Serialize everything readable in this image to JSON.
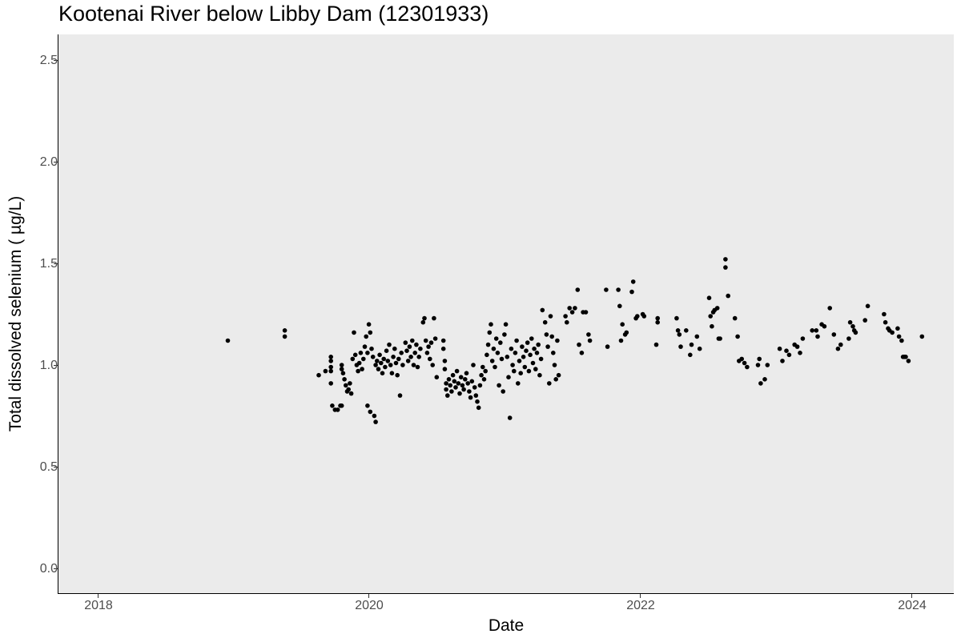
{
  "chart_data": {
    "type": "scatter",
    "title": "Kootenai River below Libby Dam (12301933)",
    "xlabel": "Date",
    "ylabel": "Total dissolved selenium ( µg/L)",
    "x_ticks": [
      "2018",
      "2020",
      "2022",
      "2024"
    ],
    "y_ticks": [
      "0.0",
      "0.5",
      "1.0",
      "1.5",
      "2.0",
      "2.5"
    ],
    "xlim": [
      2017.7,
      2024.3
    ],
    "ylim": [
      -0.12,
      2.62
    ],
    "grid": false,
    "panel_background": "#ebebeb",
    "point_color": "#000000",
    "series": [
      {
        "name": "Total dissolved selenium",
        "points": [
          [
            2018.96,
            1.12
          ],
          [
            2019.38,
            1.17
          ],
          [
            2019.38,
            1.14
          ],
          [
            2019.63,
            0.95
          ],
          [
            2019.68,
            0.97
          ],
          [
            2019.72,
            1.04
          ],
          [
            2019.72,
            1.02
          ],
          [
            2019.72,
            0.99
          ],
          [
            2019.72,
            0.97
          ],
          [
            2019.72,
            0.91
          ],
          [
            2019.73,
            0.8
          ],
          [
            2019.75,
            0.78
          ],
          [
            2019.77,
            0.78
          ],
          [
            2019.79,
            0.8
          ],
          [
            2019.8,
            0.8
          ],
          [
            2019.8,
            1.0
          ],
          [
            2019.8,
            0.98
          ],
          [
            2019.81,
            0.96
          ],
          [
            2019.82,
            0.93
          ],
          [
            2019.83,
            0.9
          ],
          [
            2019.84,
            0.87
          ],
          [
            2019.85,
            0.88
          ],
          [
            2019.86,
            0.91
          ],
          [
            2019.87,
            0.86
          ],
          [
            2019.88,
            1.03
          ],
          [
            2019.89,
            1.16
          ],
          [
            2019.9,
            1.05
          ],
          [
            2019.91,
            1.0
          ],
          [
            2019.92,
            0.97
          ],
          [
            2019.93,
            1.01
          ],
          [
            2019.94,
            1.06
          ],
          [
            2019.95,
            0.98
          ],
          [
            2019.96,
            1.03
          ],
          [
            2019.97,
            1.09
          ],
          [
            2019.98,
            1.14
          ],
          [
            2019.99,
            1.06
          ],
          [
            2019.99,
            0.8
          ],
          [
            2020.0,
            1.2
          ],
          [
            2020.01,
            1.16
          ],
          [
            2020.01,
            0.77
          ],
          [
            2020.02,
            1.08
          ],
          [
            2020.03,
            1.04
          ],
          [
            2020.04,
            0.75
          ],
          [
            2020.05,
            1.0
          ],
          [
            2020.05,
            0.72
          ],
          [
            2020.06,
            1.02
          ],
          [
            2020.07,
            0.98
          ],
          [
            2020.08,
            1.05
          ],
          [
            2020.09,
            1.01
          ],
          [
            2020.1,
            0.96
          ],
          [
            2020.11,
            1.03
          ],
          [
            2020.12,
            0.99
          ],
          [
            2020.13,
            1.07
          ],
          [
            2020.14,
            1.02
          ],
          [
            2020.15,
            1.1
          ],
          [
            2020.16,
            1.0
          ],
          [
            2020.17,
            0.96
          ],
          [
            2020.18,
            1.04
          ],
          [
            2020.19,
            1.08
          ],
          [
            2020.2,
            1.01
          ],
          [
            2020.21,
            0.95
          ],
          [
            2020.22,
            1.03
          ],
          [
            2020.23,
            0.85
          ],
          [
            2020.24,
            1.06
          ],
          [
            2020.25,
            1.0
          ],
          [
            2020.27,
            1.11
          ],
          [
            2020.28,
            1.07
          ],
          [
            2020.29,
            1.02
          ],
          [
            2020.3,
            1.09
          ],
          [
            2020.31,
            1.04
          ],
          [
            2020.32,
            1.12
          ],
          [
            2020.33,
            1.0
          ],
          [
            2020.34,
            1.06
          ],
          [
            2020.35,
            1.1
          ],
          [
            2020.36,
            0.99
          ],
          [
            2020.37,
            1.04
          ],
          [
            2020.38,
            1.08
          ],
          [
            2020.4,
            1.21
          ],
          [
            2020.41,
            1.23
          ],
          [
            2020.42,
            1.12
          ],
          [
            2020.43,
            1.06
          ],
          [
            2020.44,
            1.09
          ],
          [
            2020.45,
            1.03
          ],
          [
            2020.46,
            1.11
          ],
          [
            2020.47,
            1.0
          ],
          [
            2020.48,
            1.23
          ],
          [
            2020.49,
            1.13
          ],
          [
            2020.5,
            0.94
          ],
          [
            2020.55,
            1.12
          ],
          [
            2020.55,
            1.08
          ],
          [
            2020.56,
            1.02
          ],
          [
            2020.56,
            0.98
          ],
          [
            2020.57,
            0.91
          ],
          [
            2020.57,
            0.88
          ],
          [
            2020.58,
            0.85
          ],
          [
            2020.59,
            0.93
          ],
          [
            2020.6,
            0.9
          ],
          [
            2020.61,
            0.87
          ],
          [
            2020.62,
            0.95
          ],
          [
            2020.63,
            0.92
          ],
          [
            2020.64,
            0.89
          ],
          [
            2020.65,
            0.97
          ],
          [
            2020.66,
            0.91
          ],
          [
            2020.67,
            0.86
          ],
          [
            2020.68,
            0.94
          ],
          [
            2020.69,
            0.9
          ],
          [
            2020.7,
            0.88
          ],
          [
            2020.71,
            0.93
          ],
          [
            2020.72,
            0.96
          ],
          [
            2020.73,
            0.91
          ],
          [
            2020.74,
            0.87
          ],
          [
            2020.75,
            0.84
          ],
          [
            2020.76,
            0.92
          ],
          [
            2020.77,
            1.0
          ],
          [
            2020.78,
            0.89
          ],
          [
            2020.79,
            0.85
          ],
          [
            2020.8,
            0.82
          ],
          [
            2020.81,
            0.79
          ],
          [
            2020.82,
            0.9
          ],
          [
            2020.83,
            0.95
          ],
          [
            2020.84,
            0.99
          ],
          [
            2020.85,
            0.93
          ],
          [
            2020.86,
            0.97
          ],
          [
            2020.87,
            1.05
          ],
          [
            2020.88,
            1.1
          ],
          [
            2020.89,
            1.16
          ],
          [
            2020.9,
            1.2
          ],
          [
            2020.91,
            1.02
          ],
          [
            2020.92,
            1.08
          ],
          [
            2020.93,
            0.99
          ],
          [
            2020.94,
            1.13
          ],
          [
            2020.95,
            1.06
          ],
          [
            2020.96,
            0.9
          ],
          [
            2020.97,
            1.11
          ],
          [
            2020.98,
            1.03
          ],
          [
            2020.99,
            0.87
          ],
          [
            2021.0,
            1.15
          ],
          [
            2021.01,
            1.2
          ],
          [
            2021.02,
            1.04
          ],
          [
            2021.03,
            0.94
          ],
          [
            2021.04,
            0.74
          ],
          [
            2021.05,
            1.08
          ],
          [
            2021.06,
            1.0
          ],
          [
            2021.07,
            0.97
          ],
          [
            2021.08,
            1.06
          ],
          [
            2021.09,
            1.12
          ],
          [
            2021.1,
            0.91
          ],
          [
            2021.11,
            1.02
          ],
          [
            2021.12,
            0.96
          ],
          [
            2021.13,
            1.09
          ],
          [
            2021.14,
            1.04
          ],
          [
            2021.15,
            0.99
          ],
          [
            2021.16,
            1.07
          ],
          [
            2021.17,
            1.11
          ],
          [
            2021.18,
            0.97
          ],
          [
            2021.19,
            1.05
          ],
          [
            2021.2,
            1.13
          ],
          [
            2021.21,
            1.01
          ],
          [
            2021.22,
            1.08
          ],
          [
            2021.23,
            0.98
          ],
          [
            2021.24,
            1.06
          ],
          [
            2021.25,
            1.1
          ],
          [
            2021.26,
            0.95
          ],
          [
            2021.27,
            1.03
          ],
          [
            2021.28,
            1.27
          ],
          [
            2021.3,
            1.21
          ],
          [
            2021.31,
            1.15
          ],
          [
            2021.32,
            1.09
          ],
          [
            2021.33,
            0.91
          ],
          [
            2021.34,
            1.24
          ],
          [
            2021.35,
            1.14
          ],
          [
            2021.36,
            1.06
          ],
          [
            2021.37,
            1.0
          ],
          [
            2021.38,
            0.93
          ],
          [
            2021.39,
            1.12
          ],
          [
            2021.4,
            0.95
          ],
          [
            2021.45,
            1.24
          ],
          [
            2021.46,
            1.21
          ],
          [
            2021.48,
            1.28
          ],
          [
            2021.5,
            1.26
          ],
          [
            2021.52,
            1.28
          ],
          [
            2021.54,
            1.37
          ],
          [
            2021.55,
            1.1
          ],
          [
            2021.57,
            1.06
          ],
          [
            2021.58,
            1.26
          ],
          [
            2021.6,
            1.26
          ],
          [
            2021.62,
            1.15
          ],
          [
            2021.63,
            1.12
          ],
          [
            2021.75,
            1.37
          ],
          [
            2021.76,
            1.09
          ],
          [
            2021.84,
            1.37
          ],
          [
            2021.85,
            1.29
          ],
          [
            2021.86,
            1.12
          ],
          [
            2021.87,
            1.2
          ],
          [
            2021.89,
            1.15
          ],
          [
            2021.9,
            1.16
          ],
          [
            2021.94,
            1.36
          ],
          [
            2021.95,
            1.41
          ],
          [
            2021.97,
            1.23
          ],
          [
            2021.98,
            1.24
          ],
          [
            2022.02,
            1.25
          ],
          [
            2022.03,
            1.24
          ],
          [
            2022.12,
            1.1
          ],
          [
            2022.13,
            1.21
          ],
          [
            2022.13,
            1.23
          ],
          [
            2022.27,
            1.23
          ],
          [
            2022.28,
            1.17
          ],
          [
            2022.29,
            1.15
          ],
          [
            2022.3,
            1.09
          ],
          [
            2022.34,
            1.17
          ],
          [
            2022.37,
            1.05
          ],
          [
            2022.38,
            1.1
          ],
          [
            2022.42,
            1.14
          ],
          [
            2022.44,
            1.08
          ],
          [
            2022.51,
            1.33
          ],
          [
            2022.52,
            1.24
          ],
          [
            2022.53,
            1.19
          ],
          [
            2022.54,
            1.26
          ],
          [
            2022.55,
            1.27
          ],
          [
            2022.57,
            1.28
          ],
          [
            2022.58,
            1.13
          ],
          [
            2022.59,
            1.13
          ],
          [
            2022.63,
            1.52
          ],
          [
            2022.63,
            1.48
          ],
          [
            2022.65,
            1.34
          ],
          [
            2022.7,
            1.23
          ],
          [
            2022.72,
            1.14
          ],
          [
            2022.73,
            1.02
          ],
          [
            2022.75,
            1.03
          ],
          [
            2022.77,
            1.01
          ],
          [
            2022.79,
            0.99
          ],
          [
            2022.87,
            1.0
          ],
          [
            2022.88,
            1.03
          ],
          [
            2022.89,
            0.91
          ],
          [
            2022.92,
            0.93
          ],
          [
            2022.94,
            1.0
          ],
          [
            2023.03,
            1.08
          ],
          [
            2023.05,
            1.02
          ],
          [
            2023.08,
            1.07
          ],
          [
            2023.1,
            1.05
          ],
          [
            2023.14,
            1.1
          ],
          [
            2023.16,
            1.09
          ],
          [
            2023.18,
            1.06
          ],
          [
            2023.2,
            1.13
          ],
          [
            2023.27,
            1.17
          ],
          [
            2023.3,
            1.17
          ],
          [
            2023.31,
            1.14
          ],
          [
            2023.34,
            1.2
          ],
          [
            2023.36,
            1.19
          ],
          [
            2023.4,
            1.28
          ],
          [
            2023.43,
            1.15
          ],
          [
            2023.46,
            1.08
          ],
          [
            2023.48,
            1.1
          ],
          [
            2023.54,
            1.13
          ],
          [
            2023.55,
            1.21
          ],
          [
            2023.57,
            1.19
          ],
          [
            2023.58,
            1.17
          ],
          [
            2023.59,
            1.16
          ],
          [
            2023.68,
            1.29
          ],
          [
            2023.66,
            1.22
          ],
          [
            2023.8,
            1.25
          ],
          [
            2023.81,
            1.21
          ],
          [
            2023.83,
            1.18
          ],
          [
            2023.84,
            1.17
          ],
          [
            2023.86,
            1.16
          ],
          [
            2023.9,
            1.18
          ],
          [
            2023.91,
            1.14
          ],
          [
            2023.93,
            1.12
          ],
          [
            2023.94,
            1.04
          ],
          [
            2023.95,
            1.04
          ],
          [
            2023.96,
            1.04
          ],
          [
            2023.98,
            1.02
          ],
          [
            2024.08,
            1.14
          ]
        ]
      }
    ]
  }
}
